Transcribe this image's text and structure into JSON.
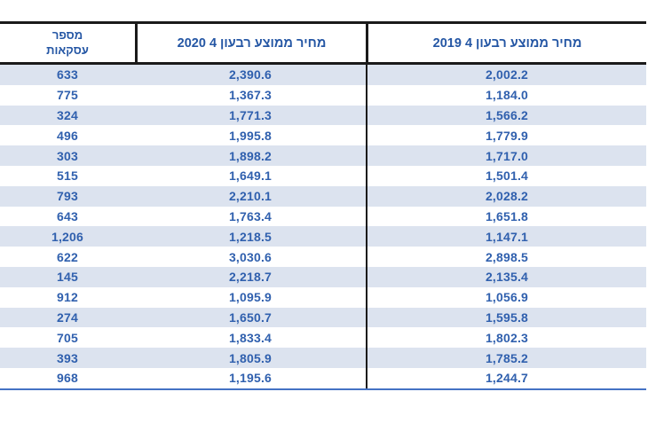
{
  "table": {
    "columns": [
      {
        "key": "transactions",
        "label": "מספר\nעסקאות"
      },
      {
        "key": "q4_2020",
        "label": "מחיר ממוצע רבעון 4 2020"
      },
      {
        "key": "q4_2019",
        "label": "מחיר ממוצע רבעון 4 2019"
      }
    ],
    "rows": [
      {
        "transactions": "633",
        "q4_2020": "2,390.6",
        "q4_2019": "2,002.2"
      },
      {
        "transactions": "775",
        "q4_2020": "1,367.3",
        "q4_2019": "1,184.0"
      },
      {
        "transactions": "324",
        "q4_2020": "1,771.3",
        "q4_2019": "1,566.2"
      },
      {
        "transactions": "496",
        "q4_2020": "1,995.8",
        "q4_2019": "1,779.9"
      },
      {
        "transactions": "303",
        "q4_2020": "1,898.2",
        "q4_2019": "1,717.0"
      },
      {
        "transactions": "515",
        "q4_2020": "1,649.1",
        "q4_2019": "1,501.4"
      },
      {
        "transactions": "793",
        "q4_2020": "2,210.1",
        "q4_2019": "2,028.2"
      },
      {
        "transactions": "643",
        "q4_2020": "1,763.4",
        "q4_2019": "1,651.8"
      },
      {
        "transactions": "1,206",
        "q4_2020": "1,218.5",
        "q4_2019": "1,147.1"
      },
      {
        "transactions": "622",
        "q4_2020": "3,030.6",
        "q4_2019": "2,898.5"
      },
      {
        "transactions": "145",
        "q4_2020": "2,218.7",
        "q4_2019": "2,135.4"
      },
      {
        "transactions": "912",
        "q4_2020": "1,095.9",
        "q4_2019": "1,056.9"
      },
      {
        "transactions": "274",
        "q4_2020": "1,650.7",
        "q4_2019": "1,595.8"
      },
      {
        "transactions": "705",
        "q4_2020": "1,833.4",
        "q4_2019": "1,802.3"
      },
      {
        "transactions": "393",
        "q4_2020": "1,805.9",
        "q4_2019": "1,785.2"
      },
      {
        "transactions": "968",
        "q4_2020": "1,195.6",
        "q4_2019": "1,244.7"
      }
    ]
  },
  "chart_data": {
    "type": "table",
    "title": "",
    "columns": [
      "מספר עסקאות",
      "מחיר ממוצע רבעון 4 2020",
      "מחיר ממוצע רבעון 4 2019"
    ],
    "transactions": [
      633,
      775,
      324,
      496,
      303,
      515,
      793,
      643,
      1206,
      622,
      145,
      912,
      274,
      705,
      393,
      968
    ],
    "avg_price_q4_2020": [
      2390.6,
      1367.3,
      1771.3,
      1995.8,
      1898.2,
      1649.1,
      2210.1,
      1763.4,
      1218.5,
      3030.6,
      2218.7,
      1095.9,
      1650.7,
      1833.4,
      1805.9,
      1195.6
    ],
    "avg_price_q4_2019": [
      2002.2,
      1184.0,
      1566.2,
      1779.9,
      1717.0,
      1501.4,
      2028.2,
      1651.8,
      1147.1,
      2898.5,
      2135.4,
      1056.9,
      1595.8,
      1802.3,
      1785.2,
      1244.7
    ]
  },
  "colors": {
    "header_text": "#2456a4",
    "body_text": "#3060ae",
    "stripe": "#dce3ef",
    "border_dark": "#1a1a1a",
    "bottom_rule": "#4472c4"
  }
}
